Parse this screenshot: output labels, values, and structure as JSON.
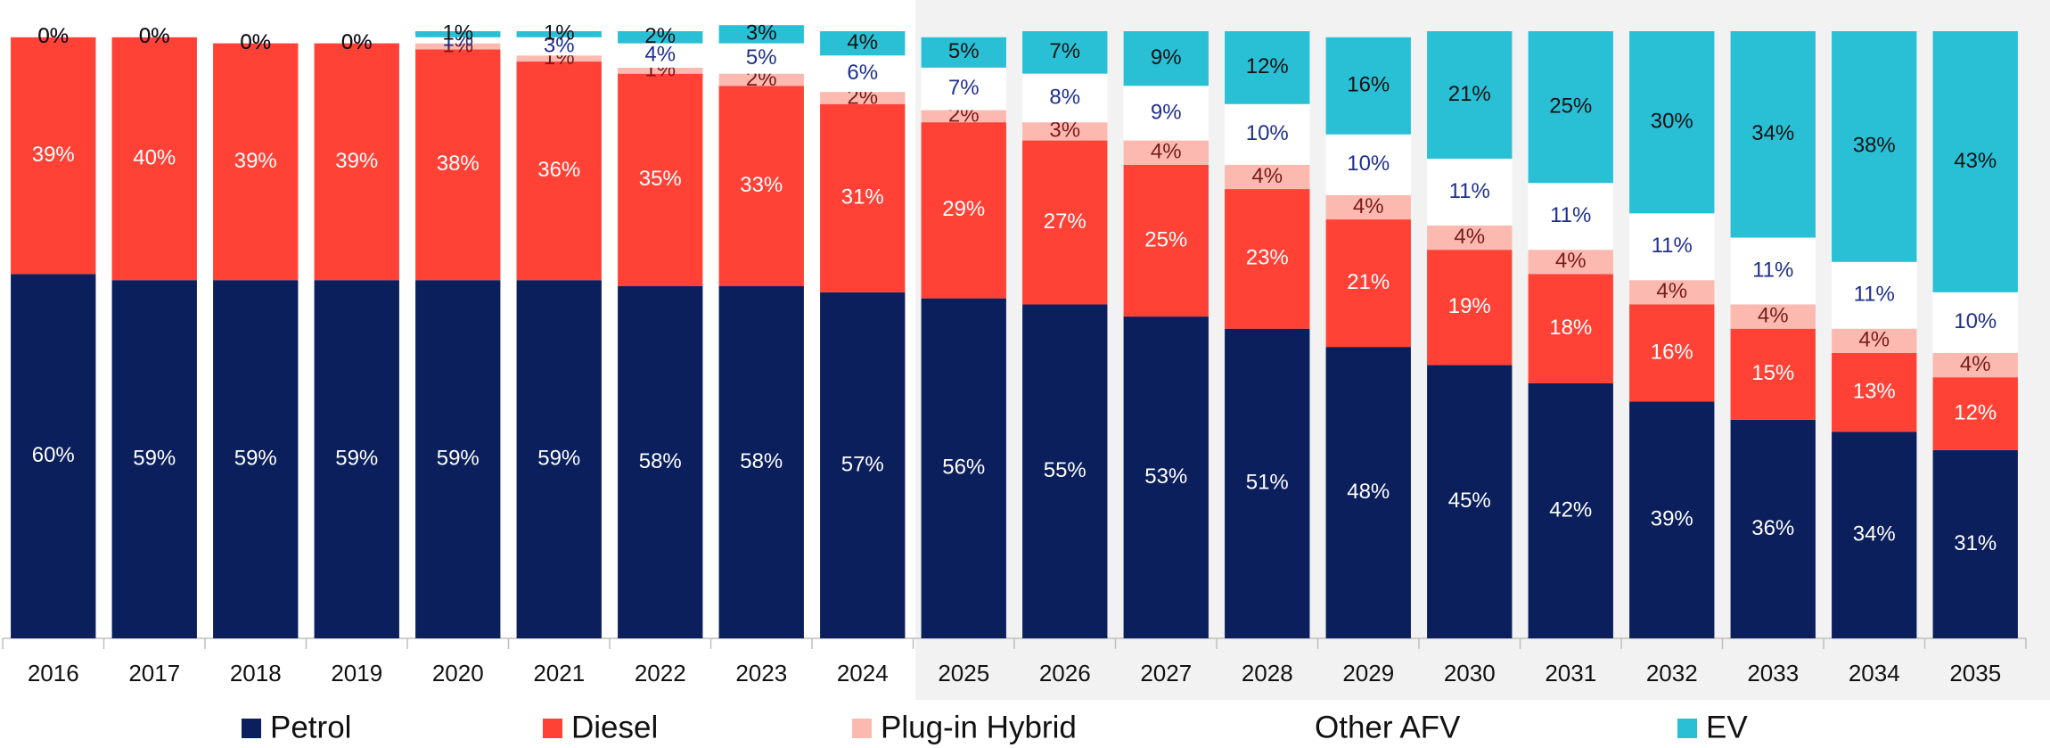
{
  "chart_data": {
    "type": "stacked_bar",
    "categories": [
      "2016",
      "2017",
      "2018",
      "2019",
      "2020",
      "2021",
      "2022",
      "2023",
      "2024",
      "2025",
      "2026",
      "2027",
      "2028",
      "2029",
      "2030",
      "2031",
      "2032",
      "2033",
      "2034",
      "2035"
    ],
    "ylim": [
      0,
      100
    ],
    "legend": "bottom",
    "series": [
      {
        "name": "Petrol",
        "color": "#0b1f5c",
        "label_color": "#ffffff",
        "values": [
          60,
          59,
          59,
          59,
          59,
          59,
          58,
          58,
          57,
          56,
          55,
          53,
          51,
          48,
          45,
          42,
          39,
          36,
          34,
          31
        ],
        "value_labels": [
          "60%",
          "59%",
          "59%",
          "59%",
          "59%",
          "59%",
          "58%",
          "58%",
          "57%",
          "56%",
          "55%",
          "53%",
          "51%",
          "48%",
          "45%",
          "42%",
          "39%",
          "36%",
          "34%",
          "31%"
        ]
      },
      {
        "name": "Diesel",
        "color": "#ff4136",
        "label_color": "#ffffff",
        "values": [
          39,
          40,
          39,
          39,
          38,
          36,
          35,
          33,
          31,
          29,
          27,
          25,
          23,
          21,
          19,
          18,
          16,
          15,
          13,
          12
        ],
        "value_labels": [
          "39%",
          "40%",
          "39%",
          "39%",
          "38%",
          "36%",
          "35%",
          "33%",
          "31%",
          "29%",
          "27%",
          "25%",
          "23%",
          "21%",
          "19%",
          "18%",
          "16%",
          "15%",
          "13%",
          "12%"
        ]
      },
      {
        "name": "Plug-in Hybrid",
        "color": "#fbb9b0",
        "label_color": "#7a1a1a",
        "values": [
          0,
          0,
          0,
          0,
          1,
          1,
          1,
          2,
          2,
          2,
          3,
          4,
          4,
          4,
          4,
          4,
          4,
          4,
          4,
          4
        ],
        "value_labels": [
          "0%",
          "0%",
          "0%",
          "0%",
          "1%",
          "1%",
          "1%",
          "2%",
          "2%",
          "2%",
          "3%",
          "4%",
          "4%",
          "4%",
          "4%",
          "4%",
          "4%",
          "4%",
          "4%",
          "4%"
        ]
      },
      {
        "name": "Other AFV",
        "color": "#ffffff",
        "label_color": "#1f2f8f",
        "values": [
          0,
          0,
          0,
          0,
          1,
          3,
          4,
          5,
          6,
          7,
          8,
          9,
          10,
          10,
          11,
          11,
          11,
          11,
          11,
          10
        ],
        "value_labels": [
          "0%",
          "0%",
          "0%",
          "0%",
          "1%",
          "3%",
          "4%",
          "5%",
          "6%",
          "7%",
          "8%",
          "9%",
          "10%",
          "10%",
          "11%",
          "11%",
          "11%",
          "11%",
          "11%",
          "10%"
        ]
      },
      {
        "name": "EV",
        "color": "#29c0d6",
        "label_color": "#111111",
        "values": [
          0,
          0,
          0,
          0,
          1,
          1,
          2,
          3,
          4,
          5,
          7,
          9,
          12,
          16,
          21,
          25,
          30,
          34,
          38,
          43
        ],
        "value_labels": [
          "0%",
          "0%",
          "0%",
          "0%",
          "1%",
          "1%",
          "2%",
          "3%",
          "4%",
          "5%",
          "7%",
          "9%",
          "12%",
          "16%",
          "21%",
          "25%",
          "30%",
          "34%",
          "38%",
          "43%"
        ]
      }
    ]
  }
}
